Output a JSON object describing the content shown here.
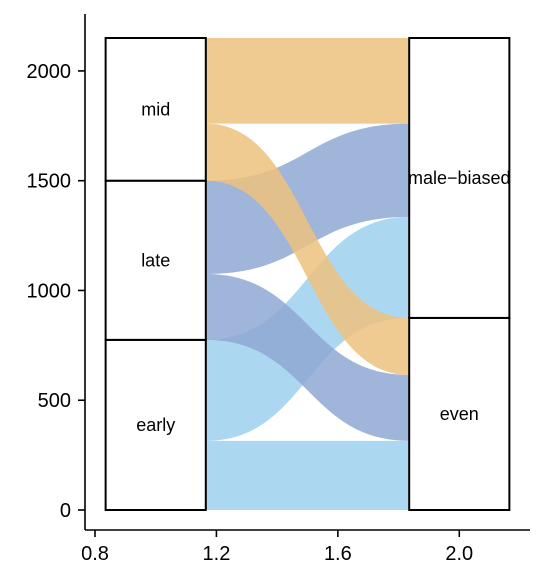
{
  "chart_data": {
    "type": "alluvial",
    "title": "",
    "xlabel": "",
    "ylabel": "",
    "xlim": [
      0.8,
      2.2
    ],
    "ylim": [
      0,
      2150
    ],
    "x_ticks": [
      {
        "value": 0.8,
        "label": "0.8"
      },
      {
        "value": 1.2,
        "label": "1.2"
      },
      {
        "value": 1.6,
        "label": "1.6"
      },
      {
        "value": 2.0,
        "label": "2.0"
      }
    ],
    "y_ticks": [
      {
        "value": 0,
        "label": "0"
      },
      {
        "value": 500,
        "label": "500"
      },
      {
        "value": 1000,
        "label": "1000"
      },
      {
        "value": 1500,
        "label": "1500"
      },
      {
        "value": 2000,
        "label": "2000"
      }
    ],
    "axes": [
      {
        "x": 1.0,
        "width": 0.33,
        "strata": [
          {
            "label": "early",
            "value": 775
          },
          {
            "label": "late",
            "value": 725
          },
          {
            "label": "mid",
            "value": 650
          }
        ]
      },
      {
        "x": 2.0,
        "width": 0.33,
        "strata": [
          {
            "label": "even",
            "value": 875
          },
          {
            "label": "male−biased",
            "value": 1275
          }
        ]
      }
    ],
    "flows": [
      {
        "from": "early",
        "to": "even",
        "value": 315,
        "color": "#9ED0EE"
      },
      {
        "from": "early",
        "to": "male−biased",
        "value": 460,
        "color": "#9ED0EE"
      },
      {
        "from": "late",
        "to": "even",
        "value": 300,
        "color": "#8EA8D2"
      },
      {
        "from": "late",
        "to": "male−biased",
        "value": 425,
        "color": "#8EA8D2"
      },
      {
        "from": "mid",
        "to": "even",
        "value": 260,
        "color": "#EDC27E"
      },
      {
        "from": "mid",
        "to": "male−biased",
        "value": 390,
        "color": "#EDC27E"
      }
    ]
  }
}
